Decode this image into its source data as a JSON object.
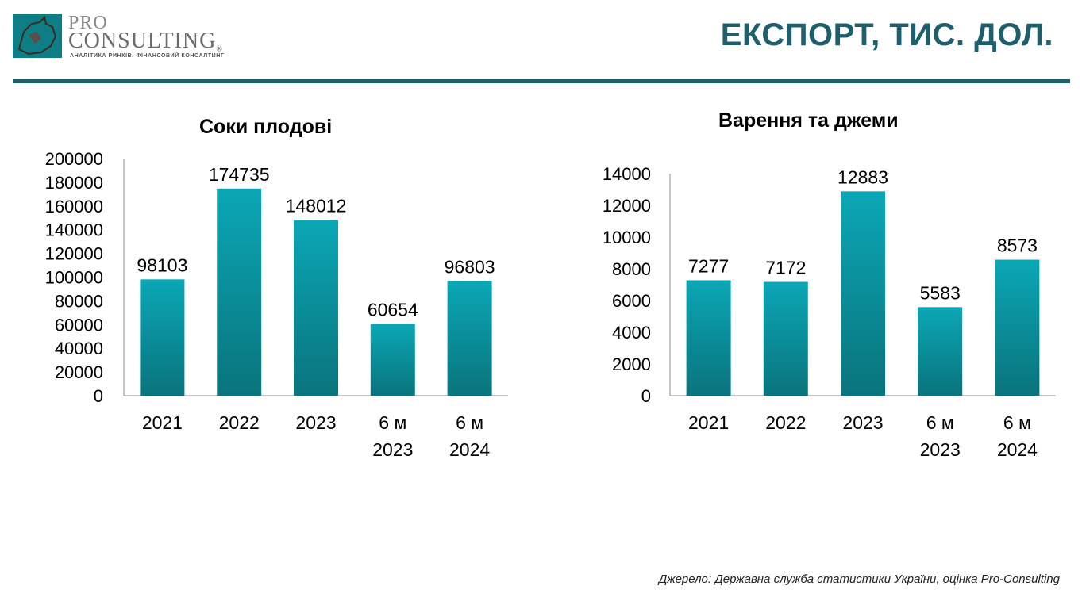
{
  "header": {
    "logo_pro": "PRO",
    "logo_consulting": "CONSULTING",
    "logo_registered": "®",
    "logo_tagline": "АНАЛІТИКА РИНКІВ. ФІНАНСОВИЙ КОНСАЛТИНГ",
    "title": "ЕКСПОРТ, ТИС. ДОЛ."
  },
  "colors": {
    "bar_top": "#0ba7b6",
    "bar_bottom": "#0a747c",
    "title": "#1f5f6b",
    "rule": "#20606b"
  },
  "chart_data": [
    {
      "type": "bar",
      "title": "Соки плодові",
      "categories": [
        [
          "2021"
        ],
        [
          "2022"
        ],
        [
          "2023"
        ],
        [
          "6 м",
          "2023"
        ],
        [
          "6 м",
          "2024"
        ]
      ],
      "values": [
        98103,
        174735,
        148012,
        60654,
        96803
      ],
      "ylim": [
        0,
        200000
      ],
      "yticks": [
        0,
        20000,
        40000,
        60000,
        80000,
        100000,
        120000,
        140000,
        160000,
        180000,
        200000
      ],
      "grid": false,
      "data_labels": true
    },
    {
      "type": "bar",
      "title": "Варення та джеми",
      "categories": [
        [
          "2021"
        ],
        [
          "2022"
        ],
        [
          "2023"
        ],
        [
          "6 м",
          "2023"
        ],
        [
          "6 м",
          "2024"
        ]
      ],
      "values": [
        7277,
        7172,
        12883,
        5583,
        8573
      ],
      "ylim": [
        0,
        14000
      ],
      "yticks": [
        0,
        2000,
        4000,
        6000,
        8000,
        10000,
        12000,
        14000
      ],
      "grid": false,
      "data_labels": true
    }
  ],
  "footer": {
    "source": "Джерело: Державна служба статистики України, оцінка Pro-Consulting"
  }
}
